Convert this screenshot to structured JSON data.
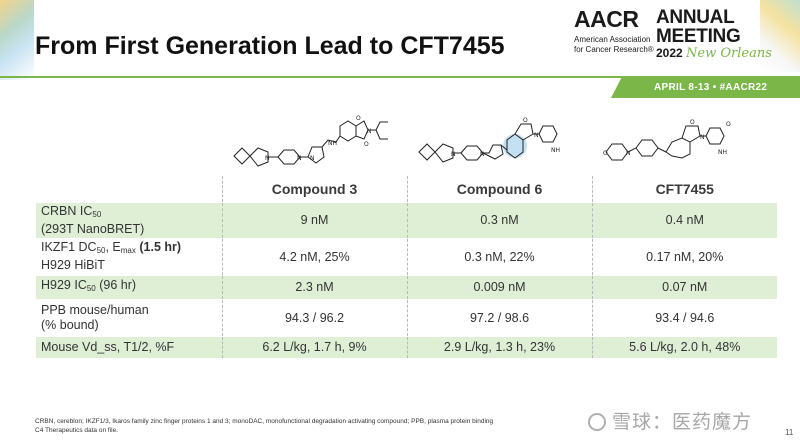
{
  "header": {
    "title": "From First Generation Lead to CFT7455"
  },
  "logo": {
    "aacr": "AACR",
    "org_line1": "American Association",
    "org_line2": "for Cancer Research®",
    "annual": "ANNUAL",
    "meeting": "MEETING",
    "year": "2022",
    "city": "New Orleans",
    "dates": "APRIL 8-13 • #AACR22"
  },
  "table": {
    "columns": [
      "Compound 3",
      "Compound 6",
      "CFT7455"
    ],
    "rows": [
      {
        "label_main": "CRBN IC",
        "label_sub": "50",
        "label_line2": "(293T NanoBRET)",
        "values": [
          "9 nM",
          "0.3 nM",
          "0.4 nM"
        ]
      },
      {
        "label_main": "IKZF1 DC",
        "label_sub": "50",
        "label_mid": ", E",
        "label_sub2": "max",
        "label_bold": "(1.5 hr)",
        "label_line2": "H929 HiBiT",
        "values": [
          "4.2 nM, 25%",
          "0.3 nM, 22%",
          "0.17 nM, 20%"
        ]
      },
      {
        "label_main": "H929 IC",
        "label_sub": "50",
        "label_tail": "(96 hr)",
        "values": [
          "2.3 nM",
          "0.009 nM",
          "0.07 nM"
        ]
      },
      {
        "label_main": "PPB mouse/human",
        "label_line2": "(% bound)",
        "values": [
          "94.3 / 96.2",
          "97.2 / 98.6",
          "93.4 / 94.6"
        ]
      },
      {
        "label_main": "Mouse Vd_ss, T1/2, %F",
        "values": [
          "6.2 L/kg, 1.7 h, 9%",
          "2.9 L/kg, 1.3 h, 23%",
          "5.6 L/kg, 2.0 h, 48%"
        ]
      }
    ]
  },
  "structures": {
    "labels": [
      "N",
      "N",
      "N",
      "NH",
      "O",
      "O",
      "N",
      "O",
      "NH",
      "O"
    ]
  },
  "footnote": {
    "line1": "CRBN, cereblon; IKZF1/3, Ikaros family zinc finger proteins 1 and 3; monoDAC, monofunctional degradation activating compound; PPB, plasma protein binding",
    "line2": "C4 Therapeutics data on file."
  },
  "watermark": "雪球：医药魔方",
  "page_number": "11",
  "colors": {
    "accent_green": "#7ab648",
    "row_shade": "#deefd6",
    "highlight_blue": "#a9d4ee"
  }
}
